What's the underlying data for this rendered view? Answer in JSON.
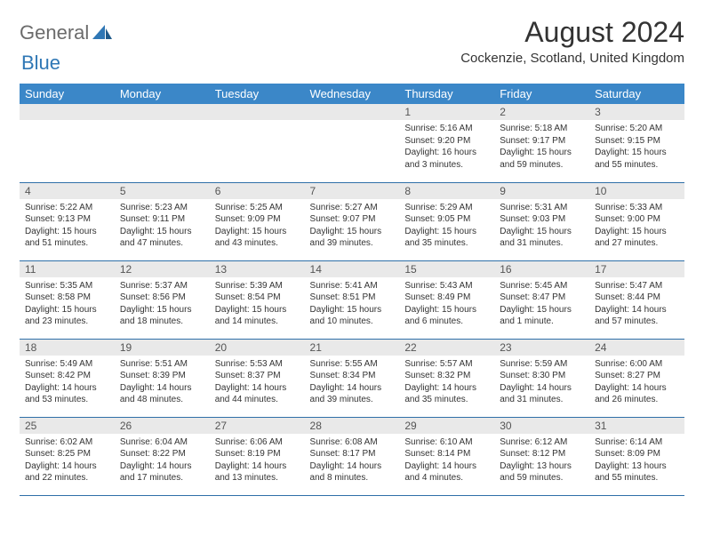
{
  "brand": {
    "word1": "General",
    "word2": "Blue"
  },
  "title": "August 2024",
  "location": "Cockenzie, Scotland, United Kingdom",
  "colors": {
    "header_bg": "#3b87c8",
    "row_divider": "#2f6fa8",
    "daynum_bg": "#e9e9e9",
    "brand_gray": "#6b6b6b",
    "brand_blue": "#2f77b5"
  },
  "day_headers": [
    "Sunday",
    "Monday",
    "Tuesday",
    "Wednesday",
    "Thursday",
    "Friday",
    "Saturday"
  ],
  "weeks": [
    [
      null,
      null,
      null,
      null,
      {
        "n": "1",
        "sr": "5:16 AM",
        "ss": "9:20 PM",
        "dl": "16 hours and 3 minutes."
      },
      {
        "n": "2",
        "sr": "5:18 AM",
        "ss": "9:17 PM",
        "dl": "15 hours and 59 minutes."
      },
      {
        "n": "3",
        "sr": "5:20 AM",
        "ss": "9:15 PM",
        "dl": "15 hours and 55 minutes."
      }
    ],
    [
      {
        "n": "4",
        "sr": "5:22 AM",
        "ss": "9:13 PM",
        "dl": "15 hours and 51 minutes."
      },
      {
        "n": "5",
        "sr": "5:23 AM",
        "ss": "9:11 PM",
        "dl": "15 hours and 47 minutes."
      },
      {
        "n": "6",
        "sr": "5:25 AM",
        "ss": "9:09 PM",
        "dl": "15 hours and 43 minutes."
      },
      {
        "n": "7",
        "sr": "5:27 AM",
        "ss": "9:07 PM",
        "dl": "15 hours and 39 minutes."
      },
      {
        "n": "8",
        "sr": "5:29 AM",
        "ss": "9:05 PM",
        "dl": "15 hours and 35 minutes."
      },
      {
        "n": "9",
        "sr": "5:31 AM",
        "ss": "9:03 PM",
        "dl": "15 hours and 31 minutes."
      },
      {
        "n": "10",
        "sr": "5:33 AM",
        "ss": "9:00 PM",
        "dl": "15 hours and 27 minutes."
      }
    ],
    [
      {
        "n": "11",
        "sr": "5:35 AM",
        "ss": "8:58 PM",
        "dl": "15 hours and 23 minutes."
      },
      {
        "n": "12",
        "sr": "5:37 AM",
        "ss": "8:56 PM",
        "dl": "15 hours and 18 minutes."
      },
      {
        "n": "13",
        "sr": "5:39 AM",
        "ss": "8:54 PM",
        "dl": "15 hours and 14 minutes."
      },
      {
        "n": "14",
        "sr": "5:41 AM",
        "ss": "8:51 PM",
        "dl": "15 hours and 10 minutes."
      },
      {
        "n": "15",
        "sr": "5:43 AM",
        "ss": "8:49 PM",
        "dl": "15 hours and 6 minutes."
      },
      {
        "n": "16",
        "sr": "5:45 AM",
        "ss": "8:47 PM",
        "dl": "15 hours and 1 minute."
      },
      {
        "n": "17",
        "sr": "5:47 AM",
        "ss": "8:44 PM",
        "dl": "14 hours and 57 minutes."
      }
    ],
    [
      {
        "n": "18",
        "sr": "5:49 AM",
        "ss": "8:42 PM",
        "dl": "14 hours and 53 minutes."
      },
      {
        "n": "19",
        "sr": "5:51 AM",
        "ss": "8:39 PM",
        "dl": "14 hours and 48 minutes."
      },
      {
        "n": "20",
        "sr": "5:53 AM",
        "ss": "8:37 PM",
        "dl": "14 hours and 44 minutes."
      },
      {
        "n": "21",
        "sr": "5:55 AM",
        "ss": "8:34 PM",
        "dl": "14 hours and 39 minutes."
      },
      {
        "n": "22",
        "sr": "5:57 AM",
        "ss": "8:32 PM",
        "dl": "14 hours and 35 minutes."
      },
      {
        "n": "23",
        "sr": "5:59 AM",
        "ss": "8:30 PM",
        "dl": "14 hours and 31 minutes."
      },
      {
        "n": "24",
        "sr": "6:00 AM",
        "ss": "8:27 PM",
        "dl": "14 hours and 26 minutes."
      }
    ],
    [
      {
        "n": "25",
        "sr": "6:02 AM",
        "ss": "8:25 PM",
        "dl": "14 hours and 22 minutes."
      },
      {
        "n": "26",
        "sr": "6:04 AM",
        "ss": "8:22 PM",
        "dl": "14 hours and 17 minutes."
      },
      {
        "n": "27",
        "sr": "6:06 AM",
        "ss": "8:19 PM",
        "dl": "14 hours and 13 minutes."
      },
      {
        "n": "28",
        "sr": "6:08 AM",
        "ss": "8:17 PM",
        "dl": "14 hours and 8 minutes."
      },
      {
        "n": "29",
        "sr": "6:10 AM",
        "ss": "8:14 PM",
        "dl": "14 hours and 4 minutes."
      },
      {
        "n": "30",
        "sr": "6:12 AM",
        "ss": "8:12 PM",
        "dl": "13 hours and 59 minutes."
      },
      {
        "n": "31",
        "sr": "6:14 AM",
        "ss": "8:09 PM",
        "dl": "13 hours and 55 minutes."
      }
    ]
  ],
  "labels": {
    "sunrise": "Sunrise:",
    "sunset": "Sunset:",
    "daylight": "Daylight:"
  }
}
